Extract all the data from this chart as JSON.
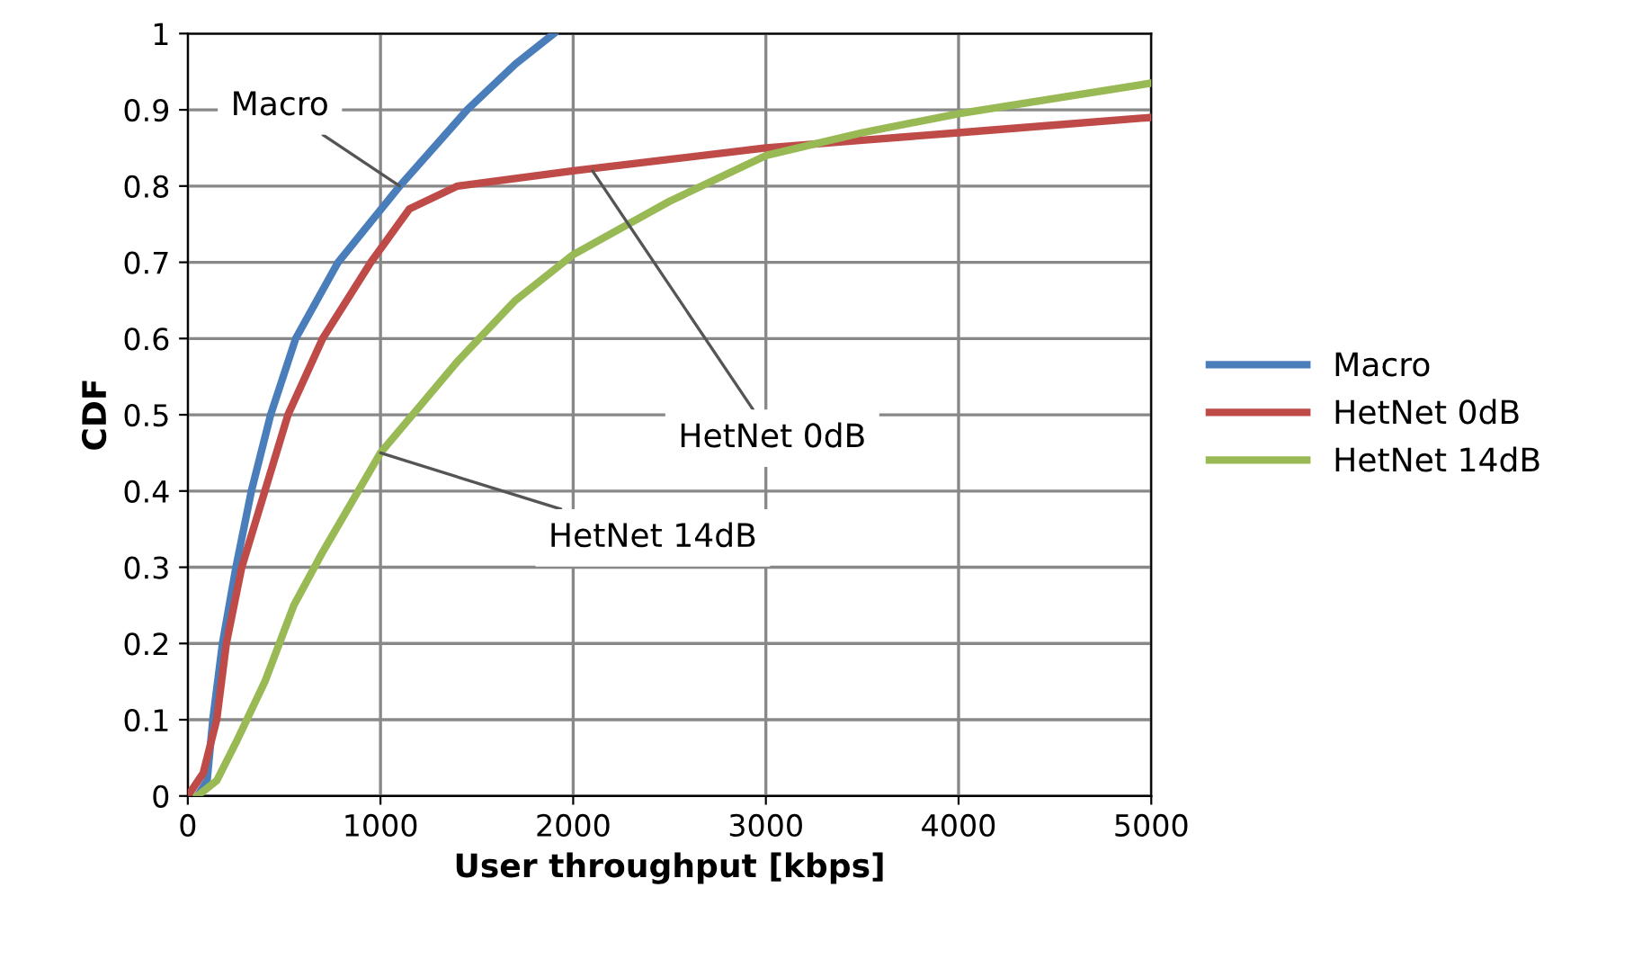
{
  "chart_data": {
    "type": "line",
    "xlabel": "User throughput [kbps]",
    "ylabel": "CDF",
    "xlim": [
      0,
      5000
    ],
    "xticks": [
      0,
      1000,
      2000,
      3000,
      4000,
      5000
    ],
    "ylim": [
      0,
      1
    ],
    "yticks": [
      0,
      0.1,
      0.2,
      0.3,
      0.4,
      0.5,
      0.6,
      0.7,
      0.8,
      0.9,
      1
    ],
    "grid": true,
    "legend": "right",
    "line_style": "solid",
    "series": [
      {
        "name": "Macro",
        "color": "#4a7ebb",
        "x": [
          50,
          100,
          130,
          180,
          250,
          330,
          430,
          560,
          780,
          1100,
          1450,
          1700,
          1900
        ],
        "values": [
          0,
          0.02,
          0.1,
          0.2,
          0.3,
          0.4,
          0.5,
          0.6,
          0.7,
          0.8,
          0.9,
          0.96,
          1.0
        ]
      },
      {
        "name": "HetNet 0dB",
        "color": "#be4b48",
        "x": [
          0,
          80,
          150,
          200,
          280,
          400,
          520,
          700,
          950,
          1150,
          1400,
          1700,
          2000,
          2500,
          3000,
          3500,
          4000,
          4500,
          5000
        ],
        "values": [
          0,
          0.03,
          0.1,
          0.2,
          0.3,
          0.4,
          0.5,
          0.6,
          0.7,
          0.77,
          0.8,
          0.81,
          0.82,
          0.835,
          0.85,
          0.86,
          0.87,
          0.88,
          0.89
        ]
      },
      {
        "name": "HetNet 14dB",
        "color": "#98b954",
        "x": [
          50,
          150,
          250,
          400,
          550,
          700,
          1000,
          1400,
          1700,
          2000,
          2500,
          3000,
          3500,
          4000,
          4500,
          5000
        ],
        "values": [
          0,
          0.02,
          0.07,
          0.15,
          0.25,
          0.32,
          0.45,
          0.57,
          0.65,
          0.71,
          0.78,
          0.84,
          0.87,
          0.895,
          0.915,
          0.935
        ]
      }
    ],
    "annotations": [
      {
        "text": "Macro",
        "x": 1100,
        "y": 0.8
      },
      {
        "text": "HetNet 0dB",
        "x": 2100,
        "y": 0.82
      },
      {
        "text": "HetNet 14dB",
        "x": 1000,
        "y": 0.45
      }
    ]
  }
}
